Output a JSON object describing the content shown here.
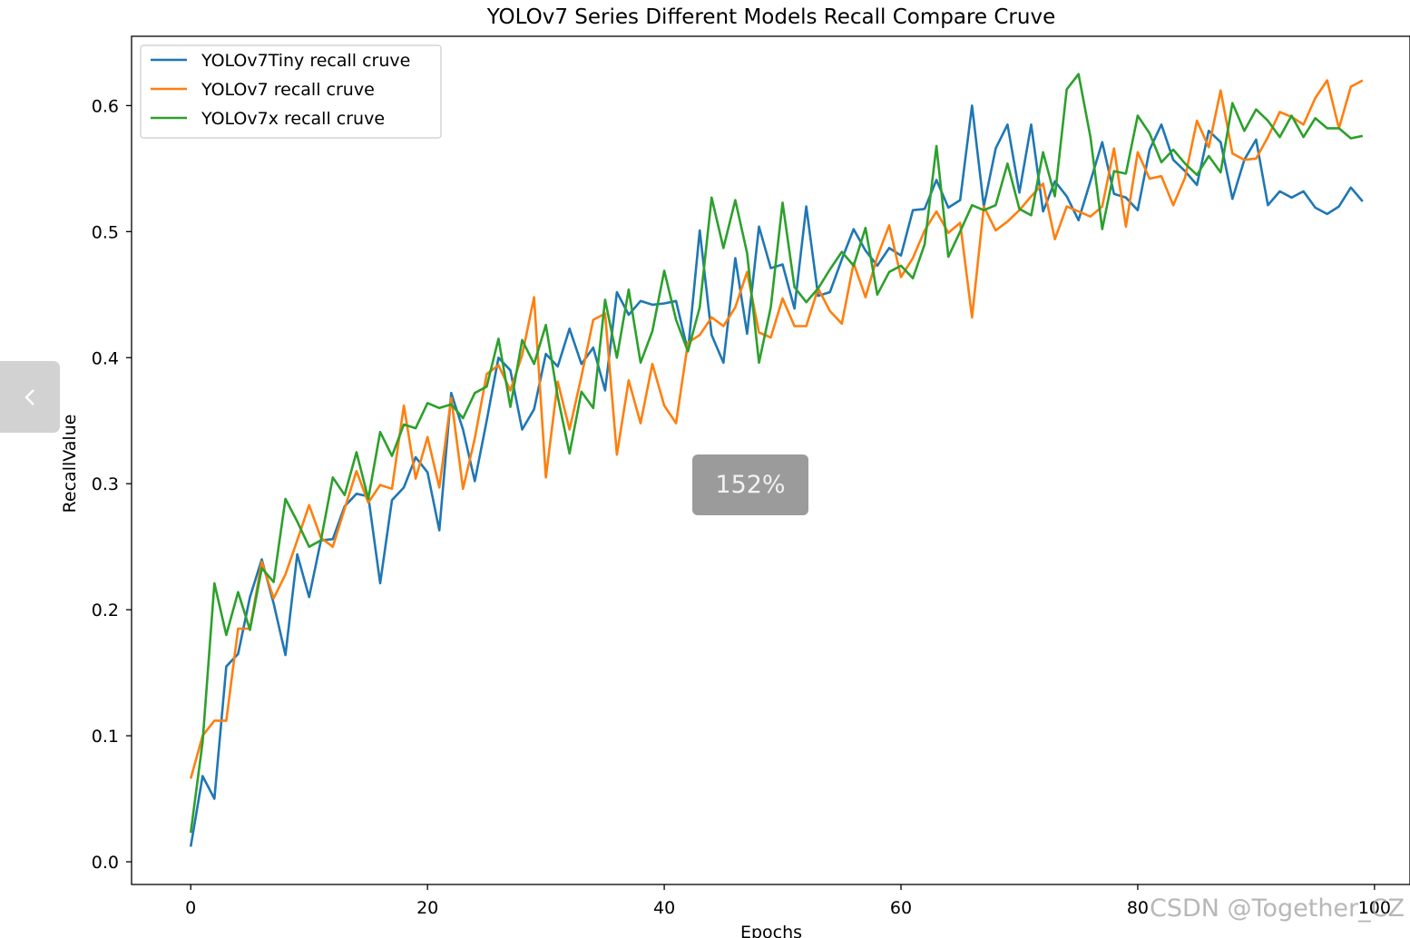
{
  "chart_data": {
    "type": "line",
    "title": "YOLOv7 Series Different Models Recall Compare Cruve",
    "xlabel": "Epochs",
    "ylabel": "RecallValue",
    "xlim": [
      -5,
      103
    ],
    "ylim": [
      -0.018,
      0.655
    ],
    "xticks": [
      0,
      20,
      40,
      60,
      80,
      100
    ],
    "xtick_labels": [
      "0",
      "20",
      "40",
      "60",
      "80",
      "100"
    ],
    "yticks": [
      0.0,
      0.1,
      0.2,
      0.3,
      0.4,
      0.5,
      0.6
    ],
    "ytick_labels": [
      "0.0",
      "0.1",
      "0.2",
      "0.3",
      "0.4",
      "0.5",
      "0.6"
    ],
    "grid": false,
    "legend_position": "upper left",
    "series": [
      {
        "name": "YOLOv7Tiny recall cruve",
        "color": "#1f77b4",
        "x": [
          0,
          1,
          2,
          3,
          4,
          5,
          6,
          7,
          8,
          9,
          10,
          11,
          12,
          13,
          14,
          15,
          16,
          17,
          18,
          19,
          20,
          21,
          22,
          23,
          24,
          25,
          26,
          27,
          28,
          29,
          30,
          31,
          32,
          33,
          34,
          35,
          36,
          37,
          38,
          39,
          40,
          41,
          42,
          43,
          44,
          45,
          46,
          47,
          48,
          49,
          50,
          51,
          52,
          53,
          54,
          55,
          56,
          57,
          58,
          59,
          60,
          61,
          62,
          63,
          64,
          65,
          66,
          67,
          68,
          69,
          70,
          71,
          72,
          73,
          74,
          75,
          76,
          77,
          78,
          79,
          80,
          81,
          82,
          83,
          84,
          85,
          86,
          87,
          88,
          89,
          90,
          91,
          92,
          93,
          94,
          95,
          96,
          97,
          98,
          99
        ],
        "values": [
          0.012,
          0.068,
          0.05,
          0.155,
          0.165,
          0.21,
          0.24,
          0.205,
          0.164,
          0.244,
          0.21,
          0.255,
          0.256,
          0.282,
          0.292,
          0.29,
          0.221,
          0.287,
          0.297,
          0.321,
          0.309,
          0.263,
          0.372,
          0.343,
          0.302,
          0.35,
          0.4,
          0.39,
          0.343,
          0.359,
          0.403,
          0.393,
          0.423,
          0.395,
          0.408,
          0.374,
          0.452,
          0.434,
          0.445,
          0.442,
          0.443,
          0.445,
          0.405,
          0.501,
          0.418,
          0.396,
          0.479,
          0.419,
          0.504,
          0.471,
          0.474,
          0.439,
          0.52,
          0.449,
          0.452,
          0.478,
          0.502,
          0.485,
          0.473,
          0.487,
          0.481,
          0.517,
          0.518,
          0.541,
          0.519,
          0.525,
          0.6,
          0.52,
          0.566,
          0.585,
          0.531,
          0.585,
          0.516,
          0.54,
          0.528,
          0.509,
          0.54,
          0.571,
          0.53,
          0.527,
          0.517,
          0.565,
          0.585,
          0.557,
          0.548,
          0.537,
          0.58,
          0.571,
          0.526,
          0.557,
          0.573,
          0.521,
          0.532,
          0.527,
          0.532,
          0.519,
          0.514,
          0.52,
          0.535,
          0.524
        ]
      },
      {
        "name": "YOLOv7 recall cruve",
        "color": "#ff7f0e",
        "x": [
          0,
          1,
          2,
          3,
          4,
          5,
          6,
          7,
          8,
          9,
          10,
          11,
          12,
          13,
          14,
          15,
          16,
          17,
          18,
          19,
          20,
          21,
          22,
          23,
          24,
          25,
          26,
          27,
          28,
          29,
          30,
          31,
          32,
          33,
          34,
          35,
          36,
          37,
          38,
          39,
          40,
          41,
          42,
          43,
          44,
          45,
          46,
          47,
          48,
          49,
          50,
          51,
          52,
          53,
          54,
          55,
          56,
          57,
          58,
          59,
          60,
          61,
          62,
          63,
          64,
          65,
          66,
          67,
          68,
          69,
          70,
          71,
          72,
          73,
          74,
          75,
          76,
          77,
          78,
          79,
          80,
          81,
          82,
          83,
          84,
          85,
          86,
          87,
          88,
          89,
          90,
          91,
          92,
          93,
          94,
          95,
          96,
          97,
          98,
          99
        ],
        "values": [
          0.066,
          0.1,
          0.112,
          0.112,
          0.185,
          0.185,
          0.238,
          0.209,
          0.228,
          0.255,
          0.283,
          0.257,
          0.25,
          0.28,
          0.31,
          0.285,
          0.299,
          0.296,
          0.362,
          0.304,
          0.337,
          0.297,
          0.368,
          0.296,
          0.336,
          0.387,
          0.394,
          0.374,
          0.402,
          0.448,
          0.305,
          0.381,
          0.343,
          0.385,
          0.43,
          0.435,
          0.323,
          0.382,
          0.348,
          0.395,
          0.362,
          0.348,
          0.412,
          0.418,
          0.432,
          0.425,
          0.44,
          0.468,
          0.42,
          0.416,
          0.447,
          0.425,
          0.425,
          0.455,
          0.437,
          0.427,
          0.475,
          0.448,
          0.48,
          0.505,
          0.464,
          0.479,
          0.501,
          0.516,
          0.499,
          0.507,
          0.432,
          0.52,
          0.501,
          0.508,
          0.517,
          0.528,
          0.538,
          0.494,
          0.52,
          0.516,
          0.512,
          0.52,
          0.566,
          0.504,
          0.563,
          0.542,
          0.544,
          0.521,
          0.543,
          0.588,
          0.567,
          0.612,
          0.562,
          0.557,
          0.558,
          0.575,
          0.595,
          0.591,
          0.585,
          0.606,
          0.62,
          0.582,
          0.615,
          0.62
        ]
      },
      {
        "name": "YOLOv7x recall cruve",
        "color": "#2ca02c",
        "x": [
          0,
          1,
          2,
          3,
          4,
          5,
          6,
          7,
          8,
          9,
          10,
          11,
          12,
          13,
          14,
          15,
          16,
          17,
          18,
          19,
          20,
          21,
          22,
          23,
          24,
          25,
          26,
          27,
          28,
          29,
          30,
          31,
          32,
          33,
          34,
          35,
          36,
          37,
          38,
          39,
          40,
          41,
          42,
          43,
          44,
          45,
          46,
          47,
          48,
          49,
          50,
          51,
          52,
          53,
          54,
          55,
          56,
          57,
          58,
          59,
          60,
          61,
          62,
          63,
          64,
          65,
          66,
          67,
          68,
          69,
          70,
          71,
          72,
          73,
          74,
          75,
          76,
          77,
          78,
          79,
          80,
          81,
          82,
          83,
          84,
          85,
          86,
          87,
          88,
          89,
          90,
          91,
          92,
          93,
          94,
          95,
          96,
          97,
          98,
          99
        ],
        "values": [
          0.023,
          0.095,
          0.221,
          0.18,
          0.214,
          0.184,
          0.233,
          0.222,
          0.288,
          0.27,
          0.25,
          0.255,
          0.305,
          0.291,
          0.325,
          0.288,
          0.341,
          0.322,
          0.347,
          0.344,
          0.364,
          0.36,
          0.363,
          0.352,
          0.372,
          0.377,
          0.415,
          0.361,
          0.414,
          0.395,
          0.426,
          0.369,
          0.324,
          0.373,
          0.36,
          0.446,
          0.4,
          0.454,
          0.396,
          0.421,
          0.469,
          0.43,
          0.405,
          0.44,
          0.527,
          0.487,
          0.525,
          0.483,
          0.396,
          0.44,
          0.523,
          0.456,
          0.444,
          0.455,
          0.47,
          0.484,
          0.473,
          0.503,
          0.45,
          0.468,
          0.473,
          0.463,
          0.49,
          0.568,
          0.48,
          0.5,
          0.521,
          0.517,
          0.521,
          0.554,
          0.518,
          0.513,
          0.563,
          0.528,
          0.613,
          0.625,
          0.575,
          0.502,
          0.548,
          0.546,
          0.592,
          0.578,
          0.555,
          0.565,
          0.554,
          0.545,
          0.56,
          0.547,
          0.602,
          0.58,
          0.597,
          0.588,
          0.575,
          0.592,
          0.575,
          0.59,
          0.582,
          0.582,
          0.574,
          0.576
        ]
      }
    ]
  },
  "ui": {
    "zoom_label": "152%",
    "watermark": "CSDN @Together_CZ",
    "prev_icon": "chevron-left-icon"
  }
}
